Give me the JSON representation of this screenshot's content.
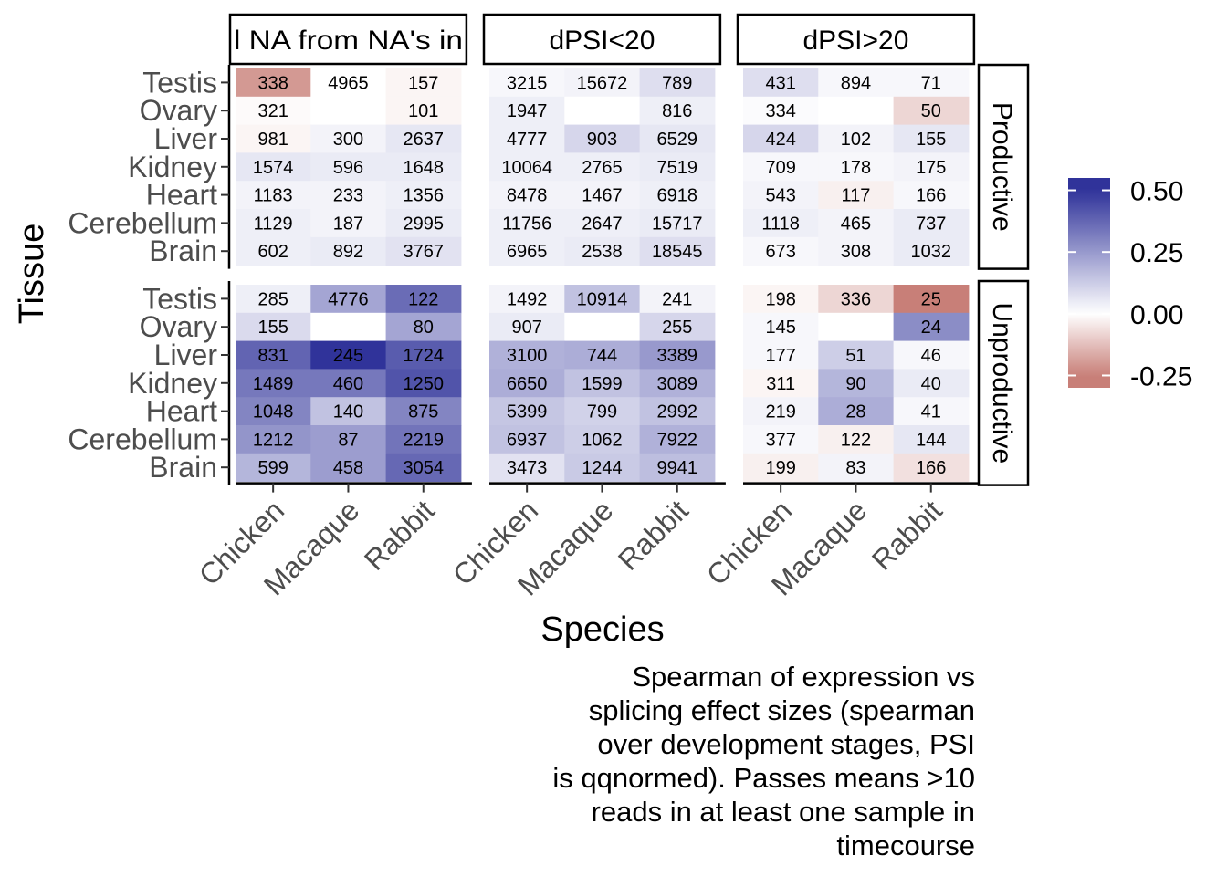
{
  "chart_data": {
    "type": "heatmap",
    "xlabel": "Species",
    "ylabel": "Tissue",
    "x_categories": [
      "Chicken",
      "Macaque",
      "Rabbit"
    ],
    "y_categories": [
      "Testis",
      "Ovary",
      "Liver",
      "Kidney",
      "Heart",
      "Cerebellum",
      "Brain"
    ],
    "column_facets": [
      "l NA from NA's in",
      "dPSI<20",
      "dPSI>20"
    ],
    "row_facets": [
      "Productive",
      "Unproductive"
    ],
    "legend": {
      "position": "right",
      "ticks": [
        "0.50",
        "0.25",
        "0.00",
        "-0.25"
      ],
      "tick_values": [
        0.5,
        0.25,
        0.0,
        -0.25
      ],
      "range": [
        -0.3,
        0.55
      ],
      "colors": {
        "low": "#c87f78",
        "mid": "#ffffff",
        "high": "#30339a"
      }
    },
    "caption_lines": [
      "Spearman of expression vs",
      "splicing effect sizes (spearman",
      "over development stages, PSI",
      "is qqnormed). Passes means >10",
      "reads in at least one sample in",
      "timecourse"
    ],
    "panels": [
      {
        "facet_col": "l NA from NA's in",
        "facet_row": "Productive",
        "labels": [
          [
            "338",
            "4965",
            "157"
          ],
          [
            "321",
            "",
            "101"
          ],
          [
            "981",
            "300",
            "2637"
          ],
          [
            "1574",
            "596",
            "1648"
          ],
          [
            "1183",
            "233",
            "1356"
          ],
          [
            "1129",
            "187",
            "2995"
          ],
          [
            "602",
            "892",
            "3767"
          ]
        ],
        "values": [
          [
            -0.2,
            0.0,
            -0.02
          ],
          [
            -0.01,
            null,
            -0.02
          ],
          [
            -0.02,
            0.03,
            0.06
          ],
          [
            0.06,
            0.05,
            0.05
          ],
          [
            0.03,
            0.03,
            0.04
          ],
          [
            0.04,
            0.03,
            0.05
          ],
          [
            0.04,
            0.05,
            0.07
          ]
        ]
      },
      {
        "facet_col": "dPSI<20",
        "facet_row": "Productive",
        "labels": [
          [
            "3215",
            "15672",
            "789"
          ],
          [
            "1947",
            "",
            "816"
          ],
          [
            "4777",
            "903",
            "6529"
          ],
          [
            "10064",
            "2765",
            "7519"
          ],
          [
            "8478",
            "1467",
            "6918"
          ],
          [
            "11756",
            "2647",
            "15717"
          ],
          [
            "6965",
            "2538",
            "18545"
          ]
        ],
        "values": [
          [
            0.02,
            0.03,
            0.08
          ],
          [
            0.04,
            null,
            0.04
          ],
          [
            0.04,
            0.1,
            0.06
          ],
          [
            0.04,
            0.04,
            0.05
          ],
          [
            0.03,
            0.03,
            0.04
          ],
          [
            0.04,
            0.04,
            0.05
          ],
          [
            0.04,
            0.05,
            0.08
          ]
        ]
      },
      {
        "facet_col": "dPSI>20",
        "facet_row": "Productive",
        "labels": [
          [
            "431",
            "894",
            "71"
          ],
          [
            "334",
            "",
            "50"
          ],
          [
            "424",
            "102",
            "155"
          ],
          [
            "709",
            "178",
            "175"
          ],
          [
            "543",
            "117",
            "166"
          ],
          [
            "1118",
            "465",
            "737"
          ],
          [
            "673",
            "308",
            "1032"
          ]
        ],
        "values": [
          [
            0.08,
            0.02,
            0.02
          ],
          [
            0.01,
            null,
            -0.08
          ],
          [
            0.1,
            0.03,
            0.06
          ],
          [
            0.02,
            0.02,
            0.03
          ],
          [
            0.03,
            -0.03,
            0.02
          ],
          [
            0.04,
            0.03,
            0.05
          ],
          [
            0.02,
            0.03,
            0.05
          ]
        ]
      },
      {
        "facet_col": "l NA from NA's in",
        "facet_row": "Unproductive",
        "labels": [
          [
            "285",
            "4776",
            "122"
          ],
          [
            "155",
            "",
            "80"
          ],
          [
            "831",
            "245",
            "1724"
          ],
          [
            "1489",
            "460",
            "1250"
          ],
          [
            "1048",
            "140",
            "875"
          ],
          [
            "1212",
            "87",
            "2219"
          ],
          [
            "599",
            "458",
            "3054"
          ]
        ],
        "values": [
          [
            0.04,
            0.22,
            0.36
          ],
          [
            0.09,
            null,
            0.22
          ],
          [
            0.38,
            0.5,
            0.4
          ],
          [
            0.33,
            0.33,
            0.42
          ],
          [
            0.3,
            0.15,
            0.3
          ],
          [
            0.26,
            0.24,
            0.34
          ],
          [
            0.18,
            0.24,
            0.37
          ]
        ]
      },
      {
        "facet_col": "dPSI<20",
        "facet_row": "Unproductive",
        "labels": [
          [
            "1492",
            "10914",
            "241"
          ],
          [
            "907",
            "",
            "255"
          ],
          [
            "3100",
            "744",
            "3389"
          ],
          [
            "6650",
            "1599",
            "3089"
          ],
          [
            "5399",
            "799",
            "2992"
          ],
          [
            "6937",
            "1062",
            "7922"
          ],
          [
            "3473",
            "1244",
            "9941"
          ]
        ],
        "values": [
          [
            0.03,
            0.15,
            0.03
          ],
          [
            0.05,
            null,
            0.1
          ],
          [
            0.19,
            0.2,
            0.25
          ],
          [
            0.2,
            0.15,
            0.19
          ],
          [
            0.14,
            0.11,
            0.15
          ],
          [
            0.15,
            0.12,
            0.19
          ],
          [
            0.07,
            0.13,
            0.16
          ]
        ]
      },
      {
        "facet_col": "dPSI>20",
        "facet_row": "Unproductive",
        "labels": [
          [
            "198",
            "336",
            "25"
          ],
          [
            "145",
            "",
            "24"
          ],
          [
            "177",
            "51",
            "46"
          ],
          [
            "311",
            "90",
            "40"
          ],
          [
            "219",
            "28",
            "41"
          ],
          [
            "377",
            "122",
            "144"
          ],
          [
            "199",
            "83",
            "166"
          ]
        ],
        "values": [
          [
            -0.02,
            -0.08,
            -0.25
          ],
          [
            0.02,
            null,
            0.28
          ],
          [
            0.02,
            0.12,
            0.02
          ],
          [
            -0.02,
            0.18,
            0.05
          ],
          [
            0.03,
            0.2,
            0.02
          ],
          [
            0.02,
            -0.03,
            0.06
          ],
          [
            -0.03,
            0.03,
            -0.06
          ]
        ]
      }
    ]
  }
}
